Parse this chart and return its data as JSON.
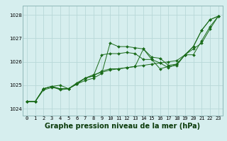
{
  "bg_color": "#d6eeee",
  "grid_color": "#b8d8d8",
  "line_color": "#1a6b1a",
  "ylabel_ticks": [
    1024,
    1025,
    1026,
    1027,
    1028
  ],
  "xlabel": "Graphe pression niveau de la mer (hPa)",
  "xlim": [
    -0.5,
    23.5
  ],
  "ylim": [
    1023.7,
    1028.4
  ],
  "series": [
    [
      1024.3,
      1024.3,
      1024.8,
      1024.9,
      1024.85,
      1024.85,
      1025.05,
      1025.2,
      1025.3,
      1025.5,
      1026.8,
      1026.65,
      1026.65,
      1026.6,
      1026.55,
      1026.2,
      1026.15,
      1025.85,
      1025.9,
      1026.3,
      1026.65,
      1027.35,
      1027.8,
      1027.95
    ],
    [
      1024.3,
      1024.3,
      1024.85,
      1024.95,
      1024.8,
      1024.85,
      1025.05,
      1025.3,
      1025.4,
      1025.6,
      1025.7,
      1025.7,
      1025.75,
      1025.8,
      1026.55,
      1026.1,
      1025.95,
      1025.75,
      1025.9,
      1026.3,
      1026.3,
      1026.9,
      1027.5,
      1027.95
    ],
    [
      1024.3,
      1024.3,
      1024.85,
      1024.95,
      1025.0,
      1024.85,
      1025.05,
      1025.3,
      1025.4,
      1026.3,
      1026.35,
      1026.35,
      1026.4,
      1026.35,
      1026.1,
      1026.1,
      1025.7,
      1025.8,
      1025.85,
      1026.3,
      1026.65,
      1027.35,
      1027.8,
      1027.95
    ],
    [
      1024.3,
      1024.3,
      1024.85,
      1024.95,
      1024.85,
      1024.85,
      1025.1,
      1025.3,
      1025.45,
      1025.55,
      1025.65,
      1025.7,
      1025.75,
      1025.8,
      1025.85,
      1025.9,
      1025.95,
      1026.0,
      1026.05,
      1026.3,
      1026.55,
      1026.8,
      1027.4,
      1027.95
    ]
  ],
  "xtick_labels": [
    "0",
    "1",
    "2",
    "3",
    "4",
    "5",
    "6",
    "7",
    "8",
    "9",
    "10",
    "11",
    "12",
    "13",
    "14",
    "15",
    "16",
    "17",
    "18",
    "19",
    "20",
    "21",
    "22",
    "23"
  ],
  "tick_fontsize": 5.0,
  "xlabel_fontsize": 7.0
}
